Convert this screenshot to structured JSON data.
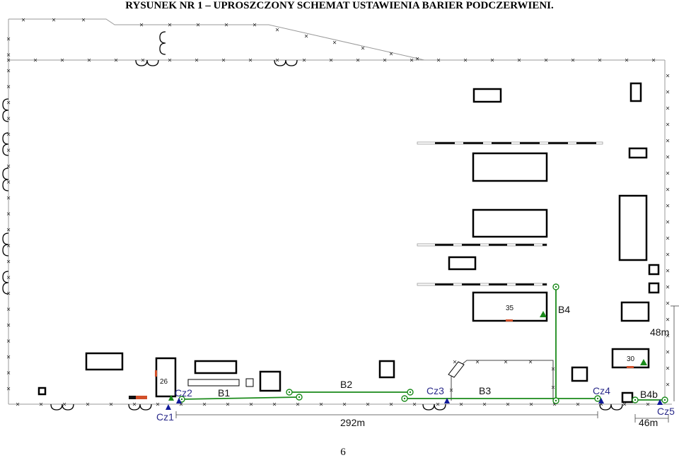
{
  "title": "RYSUNEK NR 1 – UPROSZCZONY SCHEMAT USTAWIENIA BARIER PODCZERWIENI.",
  "page_number": "6",
  "labels": {
    "b1": "B1",
    "b2": "B2",
    "b3": "B3",
    "b4": "B4",
    "b4b": "B4b",
    "cz1": "Cz1",
    "cz2": "Cz2",
    "cz3": "Cz3",
    "cz4": "Cz4",
    "cz5": "Cz5",
    "n26": "26",
    "n35": "35",
    "n30": "30",
    "dim_292": "292m",
    "dim_48": "48m",
    "dim_46": "46m"
  },
  "colors": {
    "barrier": "#1a8a1a",
    "detector": "#101a9a",
    "gate": "#d2502a",
    "fence": "#222222",
    "building": "#000000",
    "label_blue": "#2a2a8a"
  }
}
